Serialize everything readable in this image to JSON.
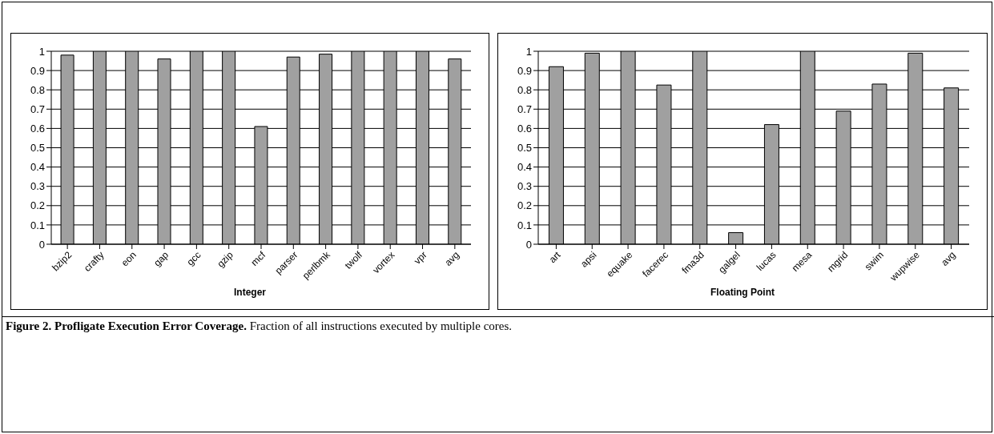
{
  "chart_data": [
    {
      "type": "bar",
      "xlabel": "Integer",
      "categories": [
        "bzip2",
        "crafty",
        "eon",
        "gap",
        "gcc",
        "gzip",
        "mcf",
        "parser",
        "perlbmk",
        "twolf",
        "vortex",
        "vpr",
        "avg"
      ],
      "series": [
        {
          "color": "#a0a0a0",
          "values": [
            0.98,
            1,
            1,
            0.96,
            1,
            1,
            0.61,
            0.97,
            0.985,
            1,
            1,
            1,
            0.96
          ]
        }
      ],
      "ylim": [
        0,
        1
      ],
      "yticks": [
        0,
        0.1,
        0.2,
        0.3,
        0.4,
        0.5,
        0.6,
        0.7,
        0.8,
        0.9,
        1
      ],
      "grid": "y"
    },
    {
      "type": "bar",
      "xlabel": "Floating Point",
      "categories": [
        "art",
        "apsi",
        "equake",
        "facerec",
        "fma3d",
        "galgel",
        "lucas",
        "mesa",
        "mgrid",
        "swim",
        "wupwise",
        "avg"
      ],
      "series": [
        {
          "color": "#a0a0a0",
          "values": [
            0.92,
            0.99,
            1,
            0.825,
            1,
            0.06,
            0.62,
            1,
            0.69,
            0.83,
            0.99,
            0.81
          ]
        }
      ],
      "ylim": [
        0,
        1
      ],
      "yticks": [
        0,
        0.1,
        0.2,
        0.3,
        0.4,
        0.5,
        0.6,
        0.7,
        0.8,
        0.9,
        1
      ],
      "grid": "y",
      "annotations": [
        "Figure 2. Profligate Execution Error Coverage.",
        "Fraction of all instructions executed by multiple cores."
      ]
    }
  ]
}
